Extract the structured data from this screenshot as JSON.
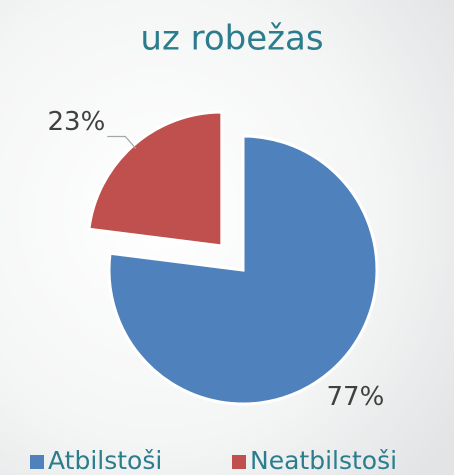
{
  "chart_data": {
    "type": "pie",
    "title": "uz robežas",
    "categories": [
      "Atbilstoši",
      "Neatbilstoši"
    ],
    "values": [
      77,
      23
    ],
    "value_labels": [
      "77%",
      "23%"
    ],
    "colors": [
      "#4f81bd",
      "#c0504d"
    ],
    "exploded": [
      false,
      true
    ],
    "legend": "bottom"
  }
}
